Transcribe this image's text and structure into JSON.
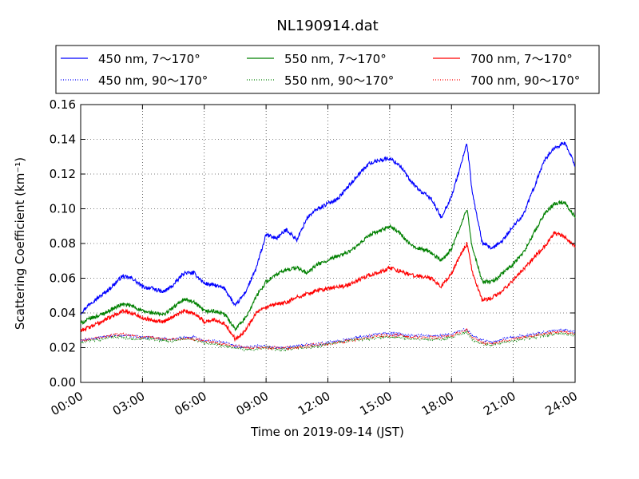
{
  "chart_data": {
    "type": "line",
    "title": "NL190914.dat",
    "xlabel": "Time on 2019-09-14 (JST)",
    "ylabel": "Scattering Coefficient (km⁻¹)",
    "x_ticks": [
      "00:00",
      "03:00",
      "06:00",
      "09:00",
      "12:00",
      "15:00",
      "18:00",
      "21:00",
      "24:00"
    ],
    "y_ticks": [
      "0.00",
      "0.02",
      "0.04",
      "0.06",
      "0.08",
      "0.10",
      "0.12",
      "0.14",
      "0.16"
    ],
    "xlim": [
      "00:00",
      "24:00"
    ],
    "ylim": [
      0,
      0.16
    ],
    "grid": true,
    "legend_position": "top, above plot",
    "x_hours": [
      0,
      0.5,
      1,
      1.5,
      2,
      2.5,
      3,
      3.5,
      4,
      4.5,
      5,
      5.5,
      6,
      6.5,
      7,
      7.5,
      8,
      8.5,
      9,
      9.5,
      10,
      10.5,
      11,
      11.5,
      12,
      12.5,
      13,
      13.5,
      14,
      14.5,
      15,
      15.5,
      16,
      16.5,
      17,
      17.5,
      18,
      18.5,
      18.75,
      19,
      19.5,
      20,
      20.5,
      21,
      21.5,
      22,
      22.5,
      23,
      23.5,
      24
    ],
    "series": [
      {
        "name": "450 nm, 7～170°",
        "color": "#0000ff",
        "style": "solid",
        "values": [
          0.04,
          0.046,
          0.05,
          0.055,
          0.061,
          0.06,
          0.055,
          0.054,
          0.052,
          0.056,
          0.063,
          0.063,
          0.057,
          0.056,
          0.054,
          0.044,
          0.052,
          0.065,
          0.085,
          0.083,
          0.088,
          0.082,
          0.095,
          0.1,
          0.103,
          0.106,
          0.113,
          0.12,
          0.126,
          0.128,
          0.129,
          0.125,
          0.116,
          0.11,
          0.106,
          0.095,
          0.107,
          0.127,
          0.138,
          0.11,
          0.08,
          0.077,
          0.082,
          0.09,
          0.097,
          0.112,
          0.128,
          0.135,
          0.138,
          0.125
        ]
      },
      {
        "name": "450 nm, 90～170°",
        "color": "#0000ff",
        "style": "dotted",
        "values": [
          0.024,
          0.025,
          0.026,
          0.027,
          0.027,
          0.027,
          0.026,
          0.026,
          0.025,
          0.025,
          0.026,
          0.026,
          0.024,
          0.024,
          0.023,
          0.021,
          0.02,
          0.021,
          0.021,
          0.02,
          0.02,
          0.021,
          0.022,
          0.022,
          0.023,
          0.024,
          0.025,
          0.026,
          0.027,
          0.028,
          0.028,
          0.028,
          0.027,
          0.027,
          0.027,
          0.027,
          0.028,
          0.03,
          0.031,
          0.027,
          0.024,
          0.023,
          0.025,
          0.026,
          0.027,
          0.028,
          0.029,
          0.03,
          0.03,
          0.029
        ]
      },
      {
        "name": "550 nm, 7～170°",
        "color": "#008000",
        "style": "solid",
        "values": [
          0.034,
          0.037,
          0.039,
          0.042,
          0.045,
          0.044,
          0.041,
          0.04,
          0.039,
          0.043,
          0.048,
          0.046,
          0.041,
          0.041,
          0.039,
          0.031,
          0.037,
          0.049,
          0.058,
          0.062,
          0.065,
          0.066,
          0.063,
          0.068,
          0.07,
          0.073,
          0.075,
          0.079,
          0.085,
          0.087,
          0.09,
          0.086,
          0.079,
          0.077,
          0.075,
          0.07,
          0.077,
          0.092,
          0.1,
          0.078,
          0.058,
          0.058,
          0.063,
          0.068,
          0.075,
          0.086,
          0.097,
          0.103,
          0.104,
          0.095
        ]
      },
      {
        "name": "550 nm, 90～170°",
        "color": "#008000",
        "style": "dotted",
        "values": [
          0.023,
          0.024,
          0.025,
          0.026,
          0.026,
          0.025,
          0.025,
          0.025,
          0.024,
          0.024,
          0.025,
          0.025,
          0.023,
          0.022,
          0.021,
          0.02,
          0.019,
          0.019,
          0.02,
          0.019,
          0.019,
          0.02,
          0.02,
          0.021,
          0.022,
          0.023,
          0.024,
          0.025,
          0.025,
          0.026,
          0.026,
          0.026,
          0.025,
          0.025,
          0.025,
          0.025,
          0.026,
          0.028,
          0.029,
          0.025,
          0.022,
          0.022,
          0.023,
          0.024,
          0.025,
          0.026,
          0.027,
          0.028,
          0.028,
          0.027
        ]
      },
      {
        "name": "700 nm, 7～170°",
        "color": "#ff0000",
        "style": "solid",
        "values": [
          0.03,
          0.032,
          0.035,
          0.038,
          0.041,
          0.04,
          0.037,
          0.036,
          0.035,
          0.038,
          0.041,
          0.04,
          0.035,
          0.036,
          0.034,
          0.025,
          0.03,
          0.04,
          0.043,
          0.045,
          0.046,
          0.049,
          0.051,
          0.053,
          0.054,
          0.055,
          0.056,
          0.059,
          0.062,
          0.063,
          0.066,
          0.064,
          0.062,
          0.061,
          0.06,
          0.055,
          0.063,
          0.075,
          0.08,
          0.064,
          0.047,
          0.049,
          0.053,
          0.059,
          0.065,
          0.072,
          0.078,
          0.086,
          0.084,
          0.078
        ]
      },
      {
        "name": "700 nm, 90～170°",
        "color": "#ff0000",
        "style": "dotted",
        "values": [
          0.024,
          0.025,
          0.026,
          0.027,
          0.028,
          0.027,
          0.026,
          0.026,
          0.025,
          0.025,
          0.025,
          0.025,
          0.024,
          0.023,
          0.022,
          0.021,
          0.02,
          0.02,
          0.02,
          0.02,
          0.02,
          0.02,
          0.021,
          0.022,
          0.022,
          0.023,
          0.024,
          0.025,
          0.026,
          0.027,
          0.027,
          0.027,
          0.026,
          0.026,
          0.026,
          0.026,
          0.027,
          0.029,
          0.03,
          0.026,
          0.023,
          0.022,
          0.024,
          0.025,
          0.026,
          0.027,
          0.028,
          0.029,
          0.029,
          0.028
        ]
      }
    ]
  }
}
